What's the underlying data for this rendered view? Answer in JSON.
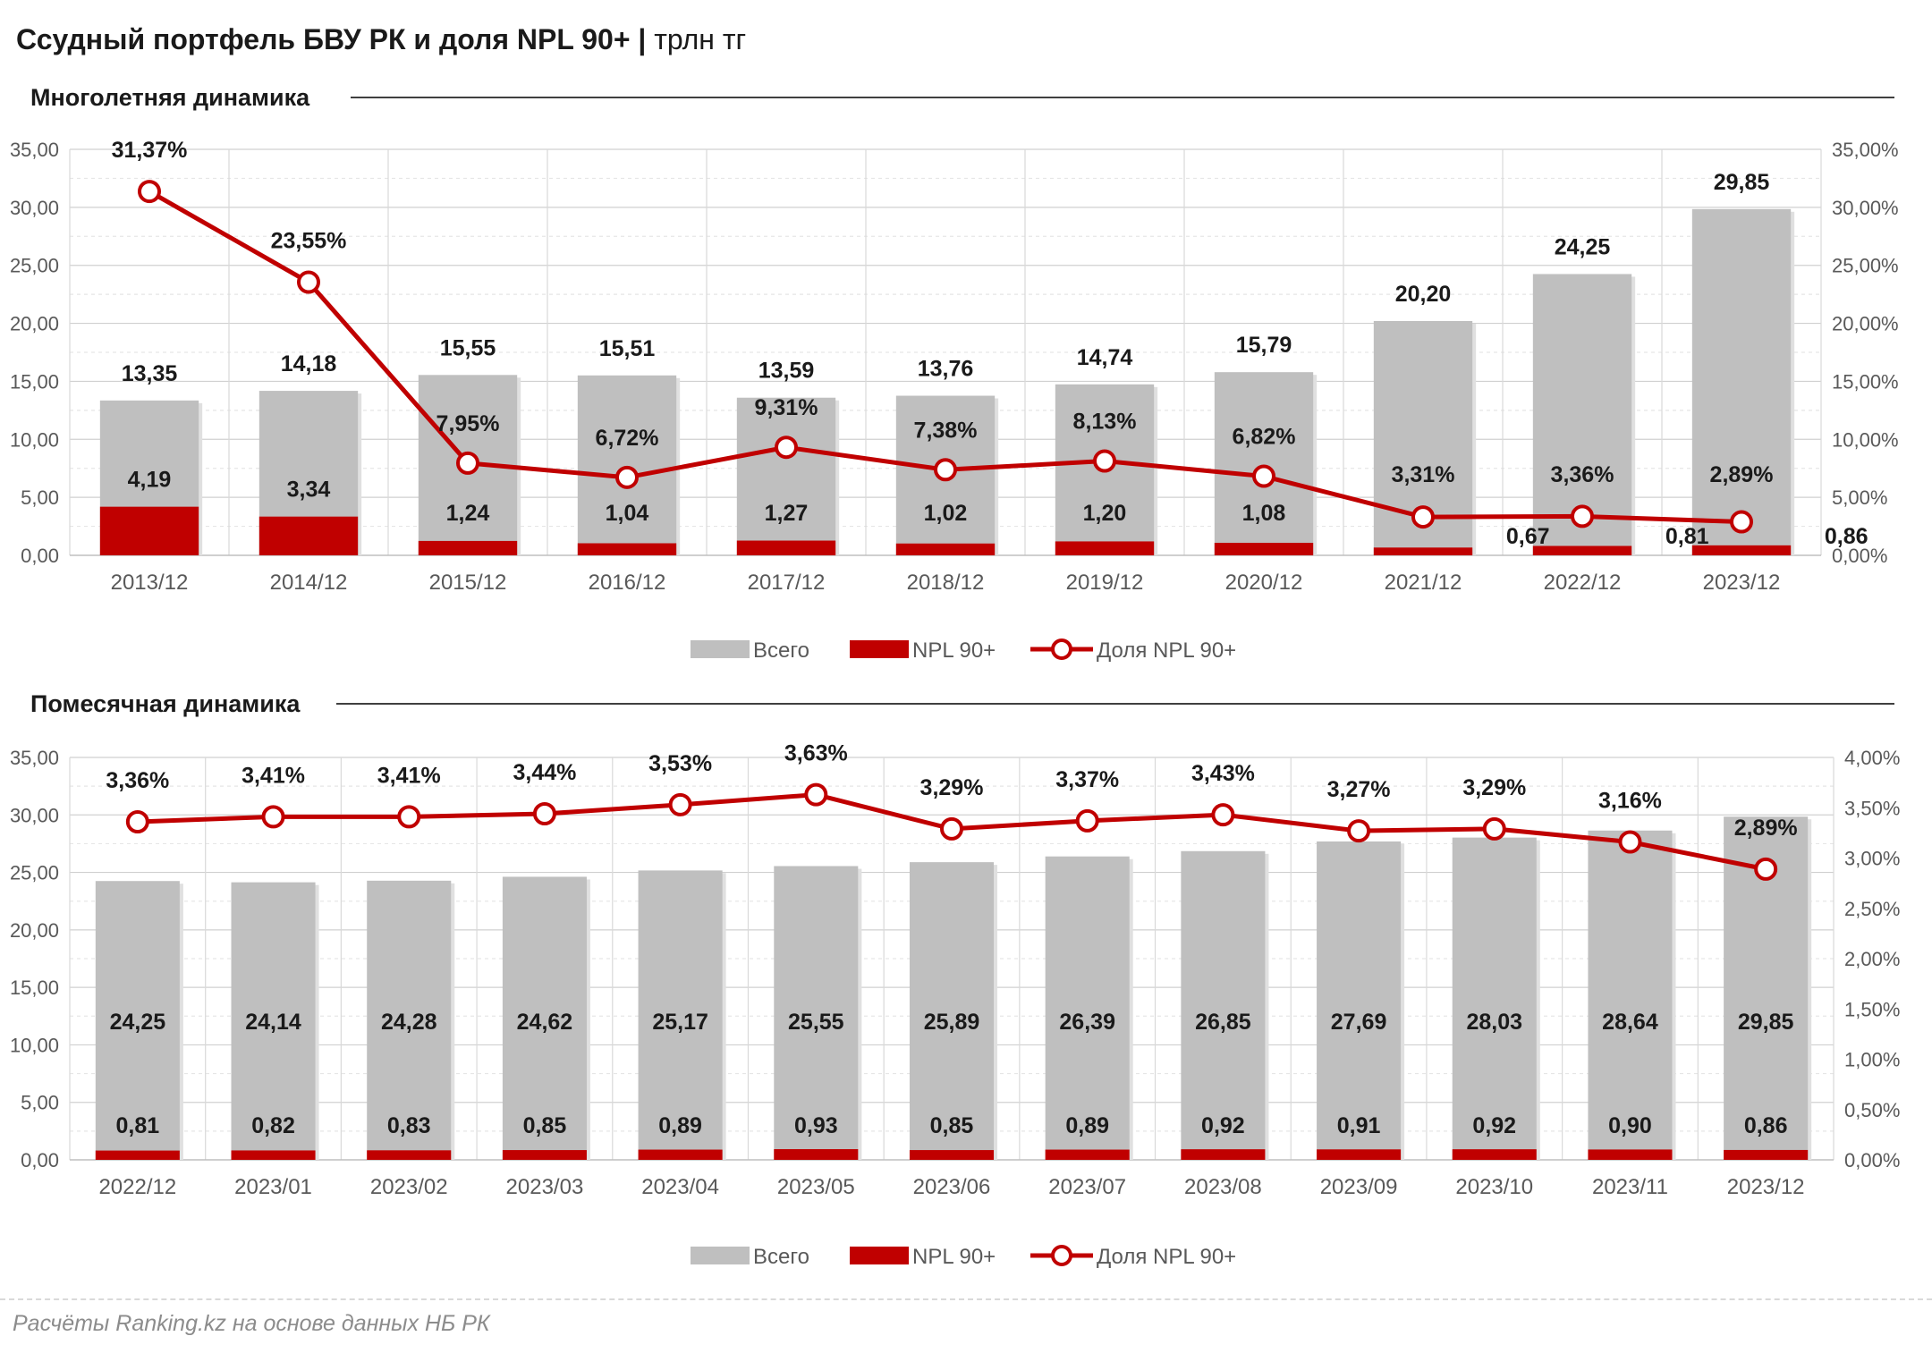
{
  "title": "Ссудный портфель БВУ РК и доля NPL 90+",
  "title_sep": "|",
  "title_unit": "трлн тг",
  "source": "Расчёты Ranking.kz на основе данных НБ РК",
  "colors": {
    "total": "#bfbfbf",
    "npl": "#c00000",
    "share_line": "#c00000",
    "grid": "#d9d9d9"
  },
  "chart_data": [
    {
      "type": "bar",
      "subtitle": "Многолетняя динамика",
      "categories": [
        "2013/12",
        "2014/12",
        "2015/12",
        "2016/12",
        "2017/12",
        "2018/12",
        "2019/12",
        "2020/12",
        "2021/12",
        "2022/12",
        "2023/12"
      ],
      "series": [
        {
          "name": "Всего",
          "type": "bar",
          "axis": "left",
          "values": [
            13.35,
            14.18,
            15.55,
            15.51,
            13.59,
            13.76,
            14.74,
            15.79,
            20.2,
            24.25,
            29.85
          ],
          "labels": [
            "13,35",
            "14,18",
            "15,55",
            "15,51",
            "13,59",
            "13,76",
            "14,74",
            "15,79",
            "20,20",
            "24,25",
            "29,85"
          ]
        },
        {
          "name": "NPL 90+",
          "type": "bar",
          "axis": "left",
          "values": [
            4.19,
            3.34,
            1.24,
            1.04,
            1.27,
            1.02,
            1.2,
            1.08,
            0.67,
            0.81,
            0.86
          ],
          "labels": [
            "4,19",
            "3,34",
            "1,24",
            "1,04",
            "1,27",
            "1,02",
            "1,20",
            "1,08",
            "0,67",
            "0,81",
            "0,86"
          ]
        },
        {
          "name": "Доля NPL 90+",
          "type": "line",
          "axis": "right",
          "values": [
            31.37,
            23.55,
            7.95,
            6.72,
            9.31,
            7.38,
            8.13,
            6.82,
            3.31,
            3.36,
            2.89
          ],
          "labels": [
            "31,37%",
            "23,55%",
            "7,95%",
            "6,72%",
            "9,31%",
            "7,38%",
            "8,13%",
            "6,82%",
            "3,31%",
            "3,36%",
            "2,89%"
          ]
        }
      ],
      "ylim": [
        0,
        35
      ],
      "yticks": [
        "0,00",
        "5,00",
        "10,00",
        "15,00",
        "20,00",
        "25,00",
        "30,00",
        "35,00"
      ],
      "y2lim": [
        0,
        35
      ],
      "y2ticks": [
        "0,00%",
        "5,00%",
        "10,00%",
        "15,00%",
        "20,00%",
        "25,00%",
        "30,00%",
        "35,00%"
      ],
      "grid": true,
      "legend": "bottom"
    },
    {
      "type": "bar",
      "subtitle": "Помесячная динамика",
      "categories": [
        "2022/12",
        "2023/01",
        "2023/02",
        "2023/03",
        "2023/04",
        "2023/05",
        "2023/06",
        "2023/07",
        "2023/08",
        "2023/09",
        "2023/10",
        "2023/11",
        "2023/12"
      ],
      "series": [
        {
          "name": "Всего",
          "type": "bar",
          "axis": "left",
          "values": [
            24.25,
            24.14,
            24.28,
            24.62,
            25.17,
            25.55,
            25.89,
            26.39,
            26.85,
            27.69,
            28.03,
            28.64,
            29.85
          ],
          "labels": [
            "24,25",
            "24,14",
            "24,28",
            "24,62",
            "25,17",
            "25,55",
            "25,89",
            "26,39",
            "26,85",
            "27,69",
            "28,03",
            "28,64",
            "29,85"
          ]
        },
        {
          "name": "NPL 90+",
          "type": "bar",
          "axis": "left",
          "values": [
            0.81,
            0.82,
            0.83,
            0.85,
            0.89,
            0.93,
            0.85,
            0.89,
            0.92,
            0.91,
            0.92,
            0.9,
            0.86
          ],
          "labels": [
            "0,81",
            "0,82",
            "0,83",
            "0,85",
            "0,89",
            "0,93",
            "0,85",
            "0,89",
            "0,92",
            "0,91",
            "0,92",
            "0,90",
            "0,86"
          ]
        },
        {
          "name": "Доля NPL 90+",
          "type": "line",
          "axis": "right",
          "values": [
            3.36,
            3.41,
            3.41,
            3.44,
            3.53,
            3.63,
            3.29,
            3.37,
            3.43,
            3.27,
            3.29,
            3.16,
            2.89
          ],
          "labels": [
            "3,36%",
            "3,41%",
            "3,41%",
            "3,44%",
            "3,53%",
            "3,63%",
            "3,29%",
            "3,37%",
            "3,43%",
            "3,27%",
            "3,29%",
            "3,16%",
            "2,89%"
          ]
        }
      ],
      "ylim": [
        0,
        35
      ],
      "yticks": [
        "0,00",
        "5,00",
        "10,00",
        "15,00",
        "20,00",
        "25,00",
        "30,00",
        "35,00"
      ],
      "y2lim": [
        0,
        4
      ],
      "y2ticks": [
        "0,00%",
        "0,50%",
        "1,00%",
        "1,50%",
        "2,00%",
        "2,50%",
        "3,00%",
        "3,50%",
        "4,00%"
      ],
      "grid": true,
      "legend": "bottom"
    }
  ]
}
